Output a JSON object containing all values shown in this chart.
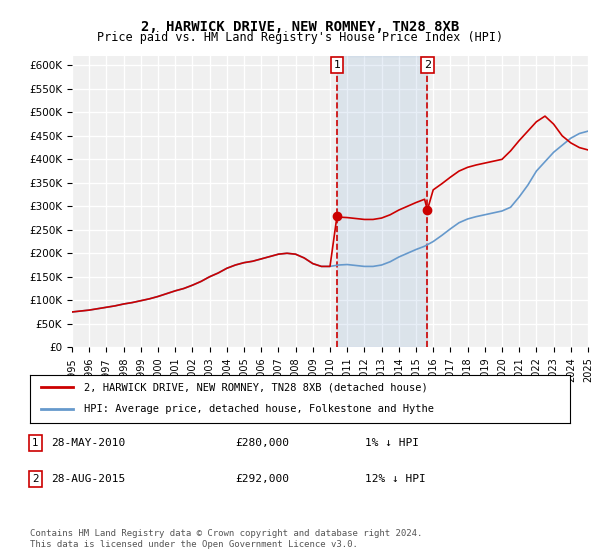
{
  "title": "2, HARWICK DRIVE, NEW ROMNEY, TN28 8XB",
  "subtitle": "Price paid vs. HM Land Registry's House Price Index (HPI)",
  "ylim": [
    0,
    620000
  ],
  "yticks": [
    0,
    50000,
    100000,
    150000,
    200000,
    250000,
    300000,
    350000,
    400000,
    450000,
    500000,
    550000,
    600000
  ],
  "ylabel_format": "£{0}K",
  "background_color": "#ffffff",
  "plot_bg_color": "#f0f0f0",
  "grid_color": "#ffffff",
  "hpi_color": "#6699cc",
  "price_color": "#cc0000",
  "sale1_date": "2010-05-28",
  "sale1_price": 280000,
  "sale1_label": "1",
  "sale1_year": 2010.41,
  "sale2_date": "2015-08-28",
  "sale2_price": 292000,
  "sale2_label": "2",
  "sale2_year": 2015.66,
  "shade_start": 2010.41,
  "shade_end": 2015.66,
  "legend_line1": "2, HARWICK DRIVE, NEW ROMNEY, TN28 8XB (detached house)",
  "legend_line2": "HPI: Average price, detached house, Folkestone and Hythe",
  "annotation1": "1    28-MAY-2010         £280,000         1% ↓ HPI",
  "annotation2": "2    28-AUG-2015         £292,000         12% ↓ HPI",
  "footer": "Contains HM Land Registry data © Crown copyright and database right 2024.\nThis data is licensed under the Open Government Licence v3.0.",
  "xmin": 1995,
  "xmax": 2025,
  "hpi_x": [
    1995,
    1995.5,
    1996,
    1996.5,
    1997,
    1997.5,
    1998,
    1998.5,
    1999,
    1999.5,
    2000,
    2000.5,
    2001,
    2001.5,
    2002,
    2002.5,
    2003,
    2003.5,
    2004,
    2004.5,
    2005,
    2005.5,
    2006,
    2006.5,
    2007,
    2007.5,
    2008,
    2008.5,
    2009,
    2009.5,
    2010,
    2010.5,
    2011,
    2011.5,
    2012,
    2012.5,
    2013,
    2013.5,
    2014,
    2014.5,
    2015,
    2015.5,
    2016,
    2016.5,
    2017,
    2017.5,
    2018,
    2018.5,
    2019,
    2019.5,
    2020,
    2020.5,
    2021,
    2021.5,
    2022,
    2022.5,
    2023,
    2023.5,
    2024,
    2024.5,
    2025
  ],
  "hpi_y": [
    75000,
    77000,
    79000,
    82000,
    85000,
    88000,
    92000,
    95000,
    99000,
    103000,
    108000,
    114000,
    120000,
    125000,
    132000,
    140000,
    150000,
    158000,
    168000,
    175000,
    180000,
    183000,
    188000,
    193000,
    198000,
    200000,
    198000,
    190000,
    178000,
    172000,
    172000,
    175000,
    176000,
    174000,
    172000,
    172000,
    175000,
    182000,
    192000,
    200000,
    208000,
    215000,
    225000,
    238000,
    252000,
    265000,
    273000,
    278000,
    282000,
    286000,
    290000,
    298000,
    320000,
    345000,
    375000,
    395000,
    415000,
    430000,
    445000,
    455000,
    460000
  ],
  "price_x": [
    1995,
    1995.5,
    1996,
    1996.5,
    1997,
    1997.5,
    1998,
    1998.5,
    1999,
    1999.5,
    2000,
    2000.5,
    2001,
    2001.5,
    2002,
    2002.5,
    2003,
    2003.5,
    2004,
    2004.5,
    2005,
    2005.5,
    2006,
    2006.5,
    2007,
    2007.5,
    2008,
    2008.5,
    2009,
    2009.5,
    2010,
    2010.41,
    2010.5,
    2011,
    2011.5,
    2012,
    2012.5,
    2013,
    2013.5,
    2014,
    2014.5,
    2015,
    2015.5,
    2015.66,
    2016,
    2016.5,
    2017,
    2017.5,
    2018,
    2018.5,
    2019,
    2019.5,
    2020,
    2020.5,
    2021,
    2021.5,
    2022,
    2022.5,
    2023,
    2023.5,
    2024,
    2024.5,
    2025
  ],
  "price_y": [
    75000,
    77000,
    79000,
    82000,
    85000,
    88000,
    92000,
    95000,
    99000,
    103000,
    108000,
    114000,
    120000,
    125000,
    132000,
    140000,
    150000,
    158000,
    168000,
    175000,
    180000,
    183000,
    188000,
    193000,
    198000,
    200000,
    198000,
    190000,
    178000,
    172000,
    172000,
    280000,
    277000,
    276000,
    274000,
    272000,
    272000,
    275000,
    282000,
    292000,
    300000,
    308000,
    315000,
    292000,
    335000,
    348000,
    362000,
    375000,
    383000,
    388000,
    392000,
    396000,
    400000,
    418000,
    440000,
    460000,
    480000,
    492000,
    475000,
    450000,
    435000,
    425000,
    420000
  ]
}
